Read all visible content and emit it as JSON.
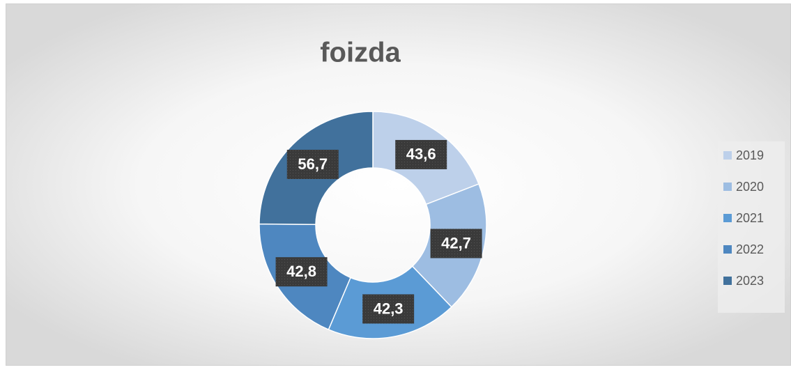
{
  "chart_data": {
    "type": "donut",
    "title": "foizda",
    "categories": [
      "2019",
      "2020",
      "2021",
      "2022",
      "2023"
    ],
    "values": [
      43.6,
      42.7,
      42.3,
      42.8,
      56.7
    ],
    "value_labels": [
      "43,6",
      "42,7",
      "42,3",
      "42,8",
      "56,7"
    ],
    "colors": [
      "#bdd0ea",
      "#9dbde2",
      "#5b9bd5",
      "#4e87c0",
      "#41719c"
    ],
    "legend": "right"
  }
}
